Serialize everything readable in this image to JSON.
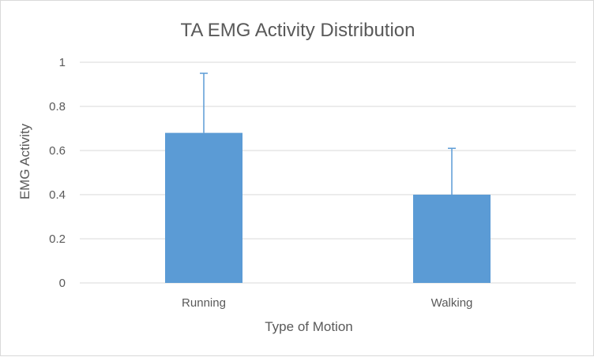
{
  "chart_data": {
    "type": "bar",
    "title": "TA EMG Activity Distribution",
    "xlabel": "Type of Motion",
    "ylabel": "EMG Activity",
    "categories": [
      "Running",
      "Walking"
    ],
    "values": [
      0.68,
      0.4
    ],
    "error_plus": [
      0.27,
      0.21
    ],
    "ylim": [
      0,
      1
    ],
    "yticks": [
      0,
      0.2,
      0.4,
      0.6,
      0.8,
      1
    ],
    "ytick_labels": [
      "0",
      "0.2",
      "0.4",
      "0.6",
      "0.8",
      "1"
    ],
    "grid": true,
    "legend": "none",
    "bar_color": "#5b9bd5"
  }
}
